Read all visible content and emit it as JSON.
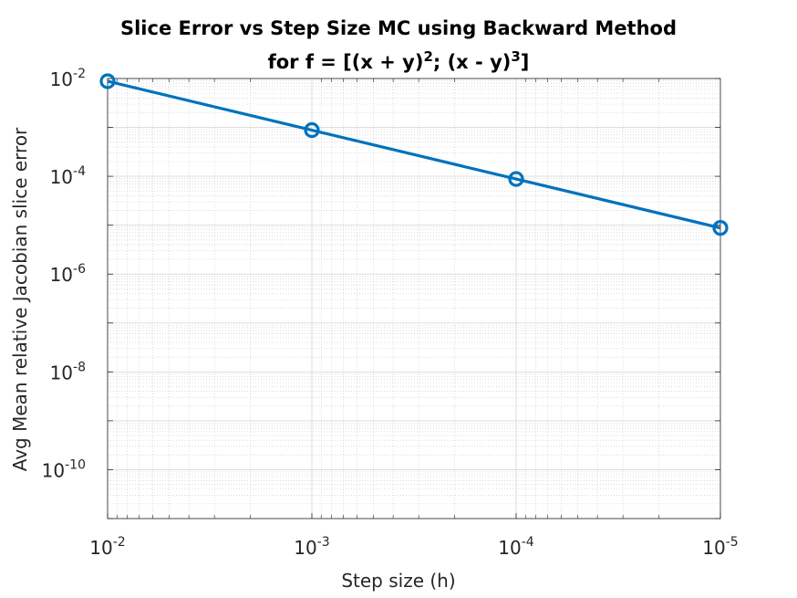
{
  "chart_data": {
    "type": "line",
    "title_lines": [
      {
        "prefix": "Slice Error vs Step Size MC using Backward Method",
        "parts": []
      },
      {
        "prefix": "for f = [(x + y)",
        "parts": [
          {
            "sup": "2",
            "text": "; (x - y)"
          },
          {
            "sup": "3",
            "text": "]"
          }
        ]
      }
    ],
    "xlabel": "Step size (h)",
    "ylabel": "Avg Mean relative Jacobian slice error",
    "x_scale": "log",
    "y_scale": "log",
    "x_reversed": true,
    "xlim": [
      1e-05,
      0.01
    ],
    "ylim": [
      1e-11,
      0.01
    ],
    "x_ticks": [
      {
        "value": 0.01,
        "base": "10",
        "exp": "-2"
      },
      {
        "value": 0.001,
        "base": "10",
        "exp": "-3"
      },
      {
        "value": 0.0001,
        "base": "10",
        "exp": "-4"
      },
      {
        "value": 1e-05,
        "base": "10",
        "exp": "-5"
      }
    ],
    "y_ticks": [
      {
        "value": 0.01,
        "base": "10",
        "exp": "-2"
      },
      {
        "value": 0.0001,
        "base": "10",
        "exp": "-4"
      },
      {
        "value": 1e-06,
        "base": "10",
        "exp": "-6"
      },
      {
        "value": 1e-08,
        "base": "10",
        "exp": "-8"
      },
      {
        "value": 1e-10,
        "base": "10",
        "exp": "-10"
      }
    ],
    "grid": true,
    "minor_grid": true,
    "series": [
      {
        "x": [
          0.01,
          0.001,
          0.0001,
          1e-05
        ],
        "y": [
          0.0088,
          0.00088,
          8.8e-05,
          8.8e-06
        ],
        "color": "#0072BD",
        "marker": "circle"
      }
    ]
  }
}
